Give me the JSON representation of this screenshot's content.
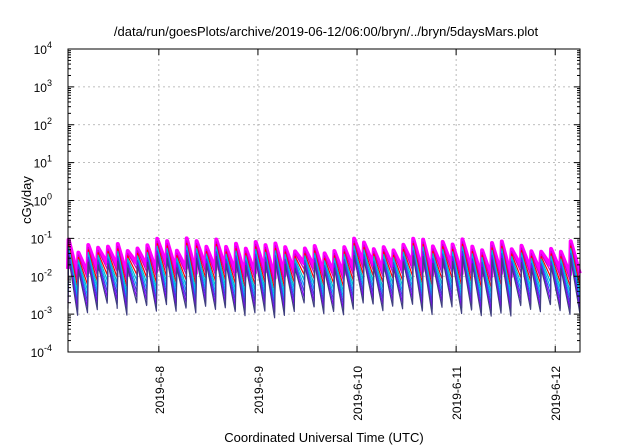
{
  "chart_data": {
    "type": "line",
    "title": "/data/run/goesPlots/archive/2019-06-12/06:00/bryn/../bryn/5daysMars.plot",
    "xlabel": "Coordinated Universal Time (UTC)",
    "ylabel": "cGy/day",
    "yscale": "log",
    "ylim": [
      0.0001,
      10000
    ],
    "xlim": [
      "2019-06-07 02:00",
      "2019-06-12 06:00"
    ],
    "x_ticks": [
      "2019-6-8",
      "2019-6-9",
      "2019-6-10",
      "2019-6-11",
      "2019-6-12"
    ],
    "y_ticks": [
      {
        "base": "10",
        "exp": "-4"
      },
      {
        "base": "10",
        "exp": "-3"
      },
      {
        "base": "10",
        "exp": "-2"
      },
      {
        "base": "10",
        "exp": "-1"
      },
      {
        "base": "10",
        "exp": "0"
      },
      {
        "base": "10",
        "exp": "1"
      },
      {
        "base": "10",
        "exp": "2"
      },
      {
        "base": "10",
        "exp": "3"
      },
      {
        "base": "10",
        "exp": "4"
      }
    ],
    "grid": true,
    "legend": "none",
    "series_envelope": {
      "cycle_count": 52,
      "peak_value_range": [
        0.04,
        0.1
      ],
      "trough_value_range": [
        0.0008,
        0.002
      ]
    },
    "series_colors": [
      "#ff00ff",
      "#cc00cc",
      "#ff0000",
      "#00c0c0",
      "#00aaff",
      "#3050e0",
      "#8000ff",
      "#404080"
    ]
  }
}
